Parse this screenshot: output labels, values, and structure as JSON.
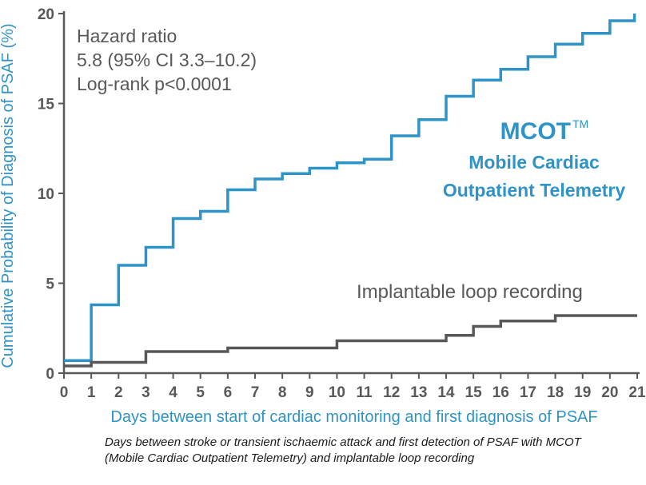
{
  "chart_data": {
    "type": "line",
    "step": true,
    "ylabel": "Cumulative Probability of Diagnosis of PSAF (%)",
    "xlabel": "Days between start of cardiac monitoring and first diagnosis of PSAF",
    "xlim": [
      0,
      21
    ],
    "ylim": [
      0,
      20
    ],
    "x_ticks": [
      "0",
      "1",
      "2",
      "3",
      "4",
      "5",
      "6",
      "7",
      "8",
      "9",
      "10",
      "11",
      "12",
      "13",
      "14",
      "15",
      "16",
      "17",
      "18",
      "19",
      "20",
      "21"
    ],
    "y_ticks": [
      "0",
      "5",
      "10",
      "15",
      "20"
    ],
    "grid": false,
    "annotations": {
      "stats": [
        "Hazard ratio",
        "5.8 (95% CI 3.3–10.2)",
        "Log-rank p<0.0001"
      ]
    },
    "series": [
      {
        "name": "MCOT",
        "superscript": "TM",
        "subtitle": [
          "Mobile Cardiac",
          "Outpatient Telemetry"
        ],
        "color": "#2e94c7",
        "x": [
          0,
          1,
          2,
          3,
          4,
          5,
          6,
          7,
          8,
          9,
          10,
          11,
          12,
          13,
          14,
          15,
          16,
          17,
          18,
          19,
          20,
          20.9
        ],
        "y": [
          0.7,
          3.8,
          6.0,
          7.0,
          8.6,
          9.0,
          10.2,
          10.8,
          11.1,
          11.4,
          11.7,
          11.9,
          13.2,
          14.1,
          15.4,
          16.3,
          16.9,
          17.6,
          18.3,
          18.9,
          19.6,
          20.0
        ]
      },
      {
        "name": "Implantable loop recording",
        "color": "#58585a",
        "x": [
          0,
          1,
          3,
          6,
          10,
          14,
          15,
          16,
          18,
          21
        ],
        "y": [
          0.4,
          0.6,
          1.2,
          1.4,
          1.8,
          2.1,
          2.6,
          2.9,
          3.2,
          3.2
        ]
      }
    ]
  },
  "caption": "Days between stroke or transient ischaemic attack and first detection of PSAF with MCOT (Mobile Cardiac Outpatient Telemetry) and implantable loop recording"
}
